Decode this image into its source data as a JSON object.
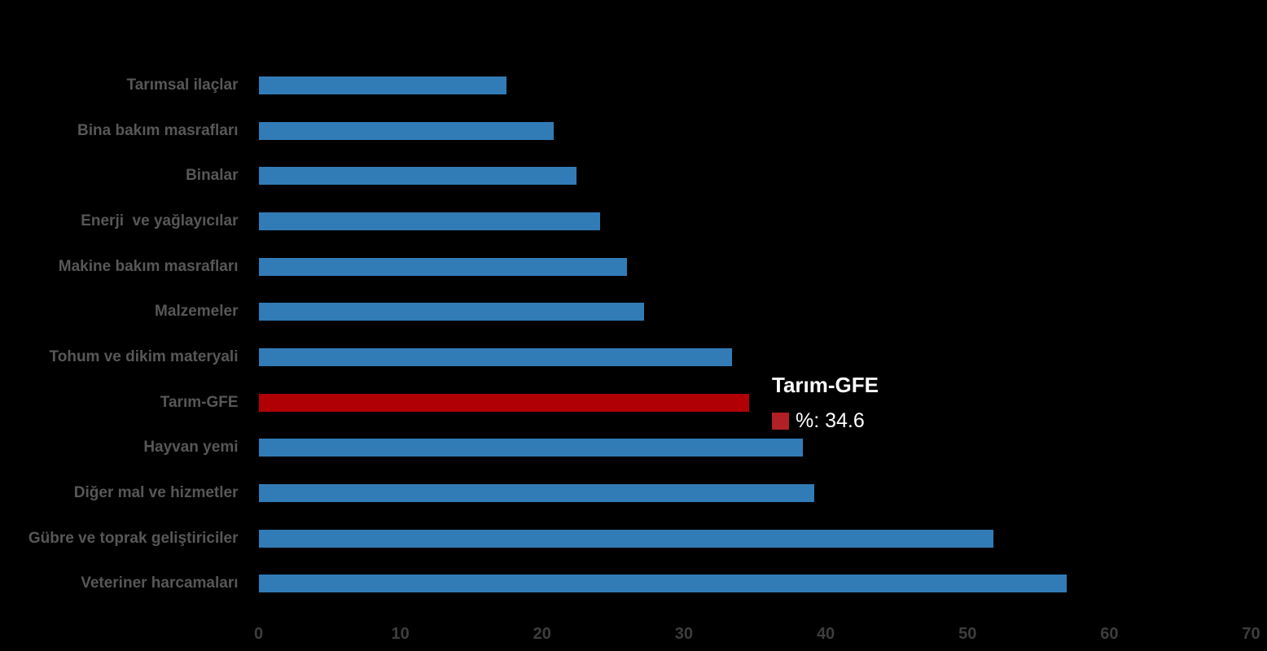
{
  "colors": {
    "bar": "#317CB7",
    "highlight_bar": "#B00006",
    "swatch": "#B02025",
    "category_label": "#575757",
    "tick_label": "#3D3D3D",
    "background": "#000000",
    "tooltip_text": "#FFFFFF"
  },
  "chart_data": {
    "type": "bar",
    "orientation": "horizontal",
    "title": "",
    "xlabel": "",
    "ylabel": "",
    "xlim": [
      0,
      70
    ],
    "x_ticks": [
      0,
      10,
      20,
      30,
      40,
      50,
      60,
      70
    ],
    "grid": false,
    "legend_position": "none",
    "categories": [
      "Tarımsal ilaçlar",
      "Bina bakım masrafları",
      "Binalar",
      "Enerji  ve yağlayıcılar",
      "Makine bakım masrafları",
      "Malzemeler",
      "Tohum ve dikim materyali",
      "Tarım-GFE",
      "Hayvan yemi",
      "Diğer mal ve hizmetler",
      "Gübre ve toprak geliştiriciler",
      "Veteriner harcamaları"
    ],
    "values": [
      17.5,
      20.8,
      22.4,
      24.1,
      26.0,
      27.2,
      33.4,
      34.6,
      38.4,
      39.2,
      51.8,
      57.0
    ],
    "highlight_category": "Tarım-GFE",
    "tooltip": {
      "title": "Tarım-GFE",
      "value_label": "%: 34.6"
    }
  }
}
